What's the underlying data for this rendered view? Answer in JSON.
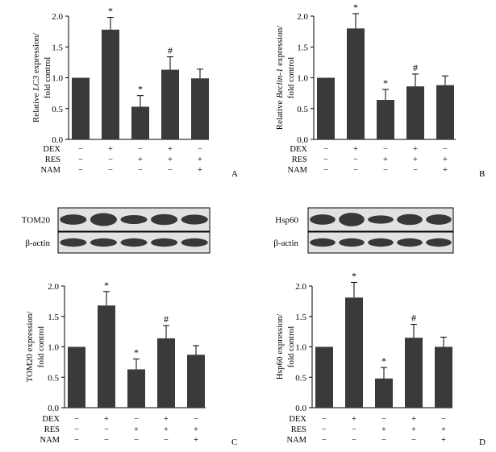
{
  "chart_data": [
    {
      "panel": "A",
      "type": "bar",
      "ylabel": "Relative LC3 expression/ fold control",
      "ylabel_lines": [
        [
          {
            "t": "Relative "
          },
          {
            "t": "LC3",
            "i": true
          },
          {
            "t": " expression/"
          }
        ],
        [
          {
            "t": "fold control"
          }
        ]
      ],
      "ylim": [
        0,
        2.0
      ],
      "yticks": [
        "0.0",
        "0.5",
        "1.0",
        "1.5",
        "2.0"
      ],
      "values": [
        1.0,
        1.78,
        0.53,
        1.13,
        0.99
      ],
      "errors": [
        0,
        0.2,
        0.18,
        0.21,
        0.15
      ],
      "marks": [
        "",
        "*",
        "*",
        "#",
        ""
      ],
      "conditions": [
        {
          "name": "DEX",
          "signs": [
            "−",
            "+",
            "−",
            "+",
            "−"
          ]
        },
        {
          "name": "RES",
          "signs": [
            "−",
            "−",
            "+",
            "+",
            "+"
          ]
        },
        {
          "name": "NAM",
          "signs": [
            "−",
            "−",
            "−",
            "−",
            "+"
          ]
        }
      ]
    },
    {
      "panel": "B",
      "type": "bar",
      "ylabel": "Relative Beclin-1 expression/ fold control",
      "ylabel_lines": [
        [
          {
            "t": "Relative "
          },
          {
            "t": "Beclin-1",
            "i": true
          },
          {
            "t": " expression/"
          }
        ],
        [
          {
            "t": "fold control"
          }
        ]
      ],
      "ylim": [
        0,
        2.0
      ],
      "yticks": [
        "0.0",
        "0.5",
        "1.0",
        "1.5",
        "2.0"
      ],
      "values": [
        1.0,
        1.8,
        0.64,
        0.86,
        0.88
      ],
      "errors": [
        0,
        0.24,
        0.17,
        0.2,
        0.15
      ],
      "marks": [
        "",
        "*",
        "*",
        "#",
        ""
      ],
      "conditions": [
        {
          "name": "DEX",
          "signs": [
            "−",
            "+",
            "−",
            "+",
            "−"
          ]
        },
        {
          "name": "RES",
          "signs": [
            "−",
            "−",
            "+",
            "+",
            "+"
          ]
        },
        {
          "name": "NAM",
          "signs": [
            "−",
            "−",
            "−",
            "−",
            "+"
          ]
        }
      ]
    },
    {
      "panel": "C",
      "type": "bar",
      "ylabel": "TOM20 expression/ fold control",
      "ylabel_lines": [
        [
          {
            "t": "TOM20 expression/"
          }
        ],
        [
          {
            "t": "fold control"
          }
        ]
      ],
      "ylim": [
        0,
        2.0
      ],
      "yticks": [
        "0.0",
        "0.5",
        "1.0",
        "1.5",
        "2.0"
      ],
      "values": [
        1.0,
        1.68,
        0.63,
        1.14,
        0.87
      ],
      "errors": [
        0,
        0.23,
        0.17,
        0.21,
        0.15
      ],
      "marks": [
        "",
        "*",
        "*",
        "#",
        ""
      ],
      "conditions": [
        {
          "name": "DEX",
          "signs": [
            "−",
            "+",
            "−",
            "+",
            "−"
          ]
        },
        {
          "name": "RES",
          "signs": [
            "−",
            "−",
            "+",
            "+",
            "+"
          ]
        },
        {
          "name": "NAM",
          "signs": [
            "−",
            "−",
            "−",
            "−",
            "+"
          ]
        }
      ],
      "blot_rows": [
        "TOM20",
        "β-actin"
      ]
    },
    {
      "panel": "D",
      "type": "bar",
      "ylabel": "Hsp60 expression/ fold control",
      "ylabel_lines": [
        [
          {
            "t": "Hsp60 expression/"
          }
        ],
        [
          {
            "t": "fold control"
          }
        ]
      ],
      "ylim": [
        0,
        2.0
      ],
      "yticks": [
        "0.0",
        "0.5",
        "1.0",
        "1.5",
        "2.0"
      ],
      "values": [
        1.0,
        1.81,
        0.48,
        1.15,
        1.0
      ],
      "errors": [
        0,
        0.25,
        0.18,
        0.22,
        0.16
      ],
      "marks": [
        "",
        "*",
        "*",
        "#",
        ""
      ],
      "conditions": [
        {
          "name": "DEX",
          "signs": [
            "−",
            "+",
            "−",
            "+",
            "−"
          ]
        },
        {
          "name": "RES",
          "signs": [
            "−",
            "−",
            "+",
            "+",
            "+"
          ]
        },
        {
          "name": "NAM",
          "signs": [
            "−",
            "−",
            "−",
            "−",
            "+"
          ]
        }
      ],
      "blot_rows": [
        "Hsp60",
        "β-actin"
      ]
    }
  ],
  "colors": {
    "bar": "#3a3a3a",
    "axis": "#000000",
    "blot_bg": "#e2e2e2",
    "band": "#262626"
  }
}
